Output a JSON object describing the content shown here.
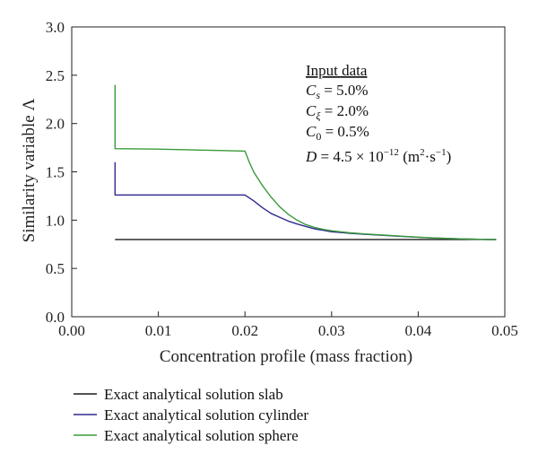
{
  "chart_data": {
    "type": "line",
    "xlabel": "Concentration profile (mass fraction)",
    "ylabel": "Similarity variable Λ",
    "xlim": [
      0.0,
      0.05
    ],
    "ylim": [
      0.0,
      3.0
    ],
    "xticks": [
      "0.00",
      "0.01",
      "0.02",
      "0.03",
      "0.04",
      "0.05"
    ],
    "yticks": [
      "0.0",
      "0.5",
      "1.0",
      "1.5",
      "2.0",
      "2.5",
      "3.0"
    ],
    "grid": false,
    "legend_position": "bottom-left",
    "series": [
      {
        "name": "Exact analytical solution slab",
        "color": "#1a1a1a",
        "points": [
          [
            0.005,
            0.8
          ],
          [
            0.049,
            0.8
          ]
        ]
      },
      {
        "name": "Exact analytical solution cylinder",
        "color": "#2e2a8f",
        "points": [
          [
            0.005,
            1.6
          ],
          [
            0.005,
            1.26
          ],
          [
            0.01,
            1.26
          ],
          [
            0.015,
            1.26
          ],
          [
            0.02,
            1.26
          ],
          [
            0.021,
            1.2
          ],
          [
            0.022,
            1.13
          ],
          [
            0.023,
            1.07
          ],
          [
            0.024,
            1.03
          ],
          [
            0.025,
            0.99
          ],
          [
            0.026,
            0.96
          ],
          [
            0.027,
            0.935
          ],
          [
            0.028,
            0.91
          ],
          [
            0.029,
            0.895
          ],
          [
            0.03,
            0.88
          ],
          [
            0.032,
            0.865
          ],
          [
            0.034,
            0.853
          ],
          [
            0.036,
            0.842
          ],
          [
            0.038,
            0.832
          ],
          [
            0.04,
            0.823
          ],
          [
            0.042,
            0.815
          ],
          [
            0.044,
            0.808
          ],
          [
            0.046,
            0.803
          ],
          [
            0.048,
            0.8
          ],
          [
            0.049,
            0.8
          ]
        ]
      },
      {
        "name": "Exact analytical solution sphere",
        "color": "#3a9a3a",
        "points": [
          [
            0.005,
            2.4
          ],
          [
            0.005,
            1.74
          ],
          [
            0.01,
            1.735
          ],
          [
            0.015,
            1.725
          ],
          [
            0.02,
            1.715
          ],
          [
            0.0205,
            1.6
          ],
          [
            0.021,
            1.5
          ],
          [
            0.022,
            1.36
          ],
          [
            0.023,
            1.24
          ],
          [
            0.024,
            1.14
          ],
          [
            0.025,
            1.06
          ],
          [
            0.026,
            1.0
          ],
          [
            0.027,
            0.955
          ],
          [
            0.028,
            0.925
          ],
          [
            0.029,
            0.905
          ],
          [
            0.03,
            0.89
          ],
          [
            0.032,
            0.87
          ],
          [
            0.034,
            0.856
          ],
          [
            0.036,
            0.845
          ],
          [
            0.038,
            0.834
          ],
          [
            0.04,
            0.824
          ],
          [
            0.042,
            0.815
          ],
          [
            0.044,
            0.808
          ],
          [
            0.046,
            0.803
          ],
          [
            0.048,
            0.8
          ],
          [
            0.049,
            0.8
          ]
        ]
      }
    ]
  },
  "annotation": {
    "heading": "Input data",
    "lines": [
      {
        "symbol": "C",
        "sub": "s",
        "text": " = 5.0%"
      },
      {
        "symbol": "C",
        "sub": "ξ",
        "text": " = 2.0%"
      },
      {
        "symbol": "C",
        "sub": "0",
        "text": " = 0.5%"
      }
    ],
    "diffusivity": {
      "symbol": "D",
      "value": " = 4.5 × 10",
      "exp": "−12",
      "unit_open": " (m",
      "unit_exp1": "2",
      "unit_mid": "·s",
      "unit_exp2": "−1",
      "unit_close": ")"
    }
  }
}
